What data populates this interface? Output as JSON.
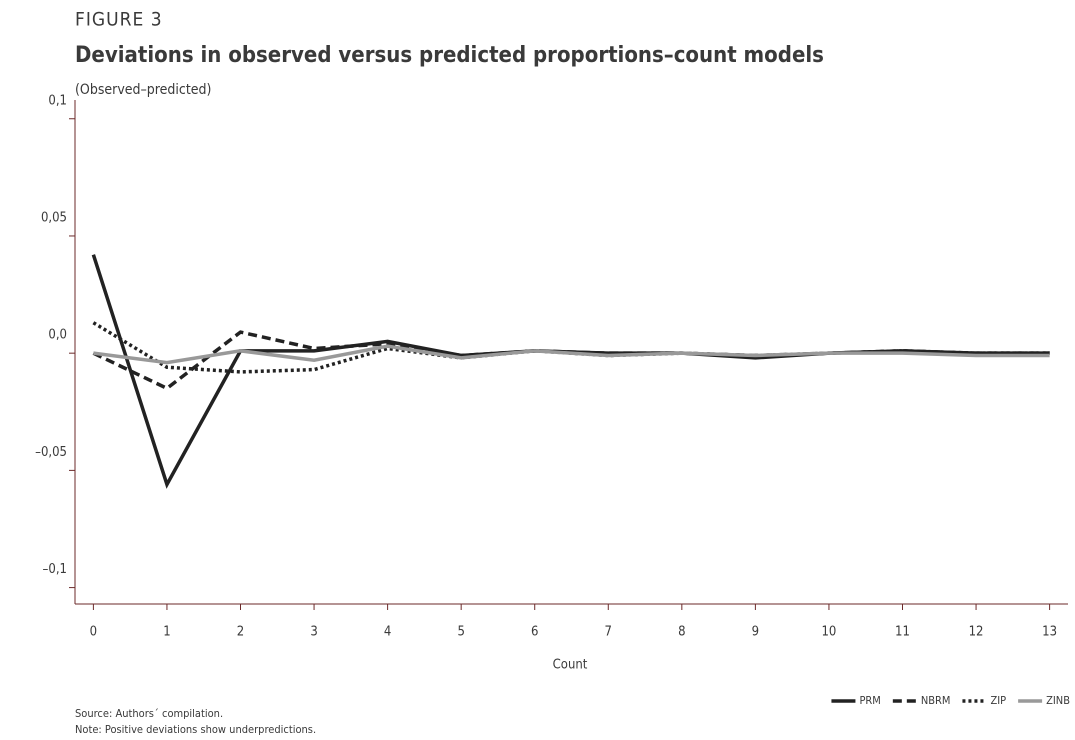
{
  "chart_data": {
    "type": "line",
    "figure_label": "FIGURE 3",
    "title": "Deviations in observed versus predicted proportions–count models",
    "subtitle": "(Observed–predicted)",
    "x_label": "Count",
    "source": "Source: Authors´ compilation.",
    "note": "Note: Positive deviations show underpredictions.",
    "x": [
      0,
      1,
      2,
      3,
      4,
      5,
      6,
      7,
      8,
      9,
      10,
      11,
      12,
      13
    ],
    "xlim": [
      -0.25,
      13.25
    ],
    "xticks": [
      0,
      1,
      2,
      3,
      4,
      5,
      6,
      7,
      8,
      9,
      10,
      11,
      12,
      13
    ],
    "ylim": [
      -0.107,
      0.108
    ],
    "yticks": [
      {
        "value": -0.1,
        "label": "–0,1"
      },
      {
        "value": -0.05,
        "label": "–0,05"
      },
      {
        "value": 0,
        "label": "0,0"
      },
      {
        "value": 0.05,
        "label": "0,05"
      },
      {
        "value": 0.1,
        "label": "0,1"
      }
    ],
    "legend_position": "bottom-right",
    "series": [
      {
        "name": "PRM",
        "color": "#222222",
        "dash": "solid",
        "values": [
          0.042,
          -0.056,
          0.001,
          0.001,
          0.005,
          -0.001,
          0.001,
          0,
          0,
          -0.002,
          0,
          0.001,
          0,
          0
        ]
      },
      {
        "name": "NBRM",
        "color": "#222222",
        "dash": "dashed",
        "values": [
          0,
          -0.015,
          0.009,
          0.002,
          0.004,
          -0.001,
          0.001,
          0,
          0,
          -0.001,
          0,
          0.001,
          0,
          0
        ]
      },
      {
        "name": "ZIP",
        "color": "#222222",
        "dash": "dotted",
        "values": [
          0.013,
          -0.006,
          -0.008,
          -0.007,
          0.002,
          -0.002,
          0.001,
          -0.001,
          0,
          -0.001,
          0,
          0.001,
          0,
          0
        ]
      },
      {
        "name": "ZINB",
        "color": "#999999",
        "dash": "solid",
        "values": [
          0,
          -0.004,
          0.001,
          -0.003,
          0.003,
          -0.002,
          0.001,
          -0.001,
          0,
          -0.001,
          0,
          0,
          -0.001,
          -0.001
        ]
      }
    ]
  }
}
